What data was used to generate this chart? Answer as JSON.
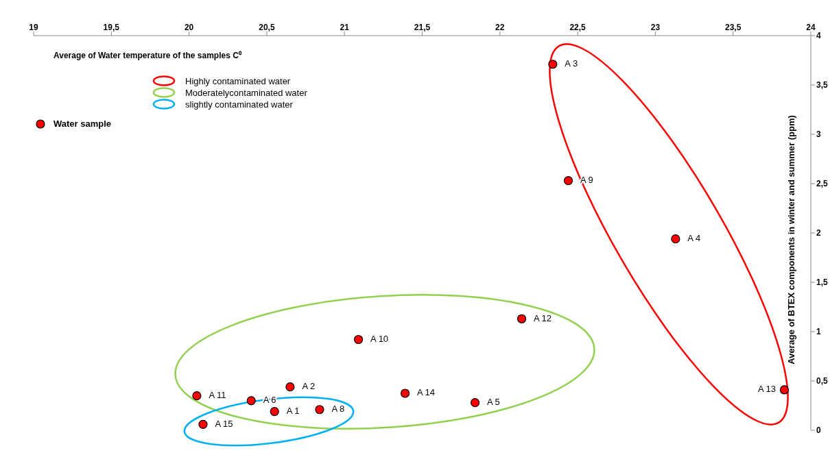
{
  "chart_data": {
    "type": "scatter",
    "xlabel": "Average of Water temperature of the samples  C⁰",
    "ylabel": "Average of  BTEX components in winter and summer  (ppm)",
    "series": [
      {
        "name": "Water sample",
        "color": "#ff0000",
        "x": [
          20.55,
          20.65,
          22.34,
          23.13,
          21.84,
          20.4,
          20.84,
          22.44,
          21.09,
          20.05,
          22.14,
          23.83,
          21.39,
          20.09
        ],
        "values": [
          0.19,
          0.44,
          3.71,
          1.94,
          0.28,
          0.3,
          0.21,
          2.53,
          0.92,
          0.35,
          1.13,
          0.41,
          0.375,
          0.06
        ],
        "value_labels": [
          "A 1",
          "A 2",
          "A 3",
          "A 4",
          "A 5",
          "A 6",
          "A 8",
          "A 9",
          "A 10",
          "A 11",
          "A 12",
          "A 13",
          "A 14",
          "A 15"
        ]
      }
    ],
    "annotations": [
      "Highly contaminated water",
      "Moderatelycontaminated water",
      "slightly contaminated water"
    ],
    "xlim": [
      19,
      24
    ],
    "xticks": [
      19,
      {
        "value": 19.5,
        "label": "19,5"
      },
      20,
      {
        "value": 20.5,
        "label": "20,5"
      },
      21,
      {
        "value": 21.5,
        "label": "21,5"
      },
      22,
      {
        "value": 22.5,
        "label": "22,5"
      },
      23,
      {
        "value": 23.5,
        "label": "23,5"
      },
      24
    ],
    "ylim": [
      0,
      4
    ],
    "yticks": [
      0,
      {
        "value": 0.5,
        "label": "0,5"
      },
      1,
      {
        "value": 1.5,
        "label": "1,5"
      },
      2,
      {
        "value": 2.5,
        "label": "2,5"
      },
      3,
      {
        "value": 3.5,
        "label": "3,5"
      },
      4
    ],
    "marker": "circle",
    "legend": "left",
    "grid": false
  }
}
